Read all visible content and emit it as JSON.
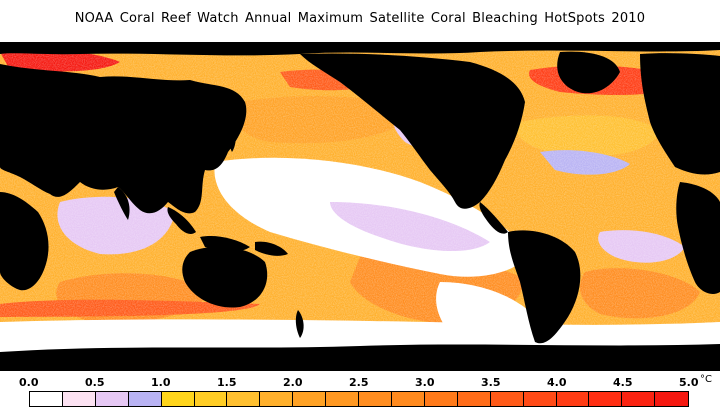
{
  "title": "NOAA Coral Reef Watch Annual Maximum Satellite Coral Bleaching HotSpots   2010",
  "legend": {
    "ticks": [
      "0.0",
      "0.5",
      "1.0",
      "1.5",
      "2.0",
      "2.5",
      "3.0",
      "3.5",
      "4.0",
      "4.5",
      "5.0"
    ],
    "unit": "°C",
    "colors": [
      "#ffffff",
      "#fce2f2",
      "#e6c8f4",
      "#b9b3f3",
      "#ffd51c",
      "#ffcd25",
      "#ffc030",
      "#ffb02c",
      "#ffa225",
      "#ff9822",
      "#ff8d20",
      "#ff8a1e",
      "#ff7a1a",
      "#ff6c19",
      "#ff5a18",
      "#ff4a16",
      "#ff3c14",
      "#ff2e12",
      "#fb2311",
      "#f51810"
    ]
  },
  "map": {
    "land_color": "#000000",
    "ocean_palette": [
      "#ffffff",
      "#e6c8f4",
      "#b9b3f3",
      "#ffd51c",
      "#ffb02c",
      "#ff8d20",
      "#ff5a18",
      "#f51810"
    ]
  }
}
